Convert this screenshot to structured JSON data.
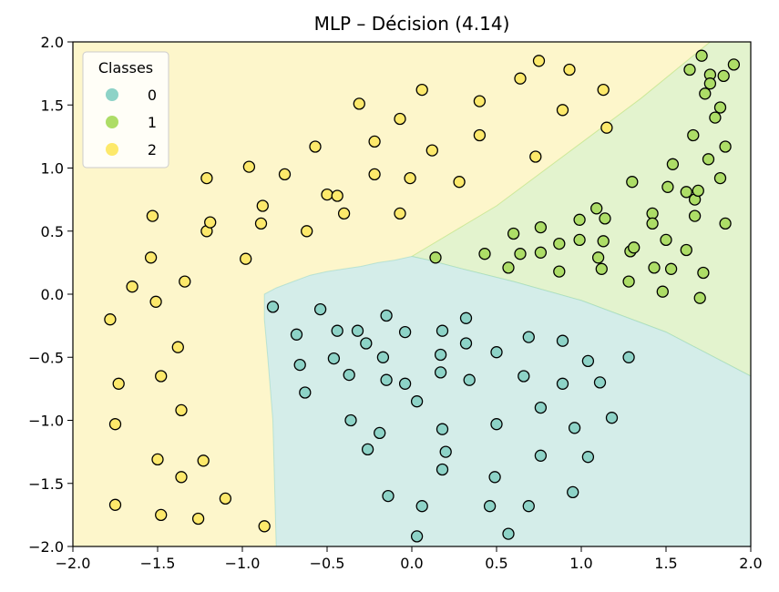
{
  "chart_data": {
    "type": "scatter",
    "title": "MLP – Décision (4.14)",
    "xlabel": "",
    "ylabel": "",
    "xlim": [
      -2.0,
      2.0
    ],
    "ylim": [
      -2.0,
      2.0
    ],
    "xticks": [
      -2.0,
      -1.5,
      -1.0,
      -0.5,
      0.0,
      0.5,
      1.0,
      1.5,
      2.0
    ],
    "yticks": [
      -2.0,
      -1.5,
      -1.0,
      -0.5,
      0.0,
      0.5,
      1.0,
      1.5,
      2.0
    ],
    "xtick_labels": [
      "−2.0",
      "−1.5",
      "−1.0",
      "−0.5",
      "0.0",
      "0.5",
      "1.0",
      "1.5",
      "2.0"
    ],
    "ytick_labels": [
      "−2.0",
      "−1.5",
      "−1.0",
      "−0.5",
      "0.0",
      "0.5",
      "1.0",
      "1.5",
      "2.0"
    ],
    "grid": false,
    "legend": {
      "title": "Classes",
      "placement": "top-left",
      "entries": [
        "0",
        "1",
        "2"
      ]
    },
    "colors": {
      "class0": "#8dd3c7",
      "class1": "#addd67",
      "class2": "#fde96b",
      "region0": "#d4ede9",
      "region1": "#e3f3ce",
      "region2": "#fdf6cb"
    },
    "regions": {
      "class0": [
        [
          -0.87,
          0.0
        ],
        [
          -0.8,
          0.05
        ],
        [
          -0.7,
          0.1
        ],
        [
          -0.6,
          0.15
        ],
        [
          -0.5,
          0.18
        ],
        [
          -0.4,
          0.2
        ],
        [
          -0.3,
          0.22
        ],
        [
          -0.2,
          0.25
        ],
        [
          -0.1,
          0.27
        ],
        [
          0.0,
          0.3
        ],
        [
          0.1,
          0.27
        ],
        [
          0.3,
          0.2
        ],
        [
          0.6,
          0.1
        ],
        [
          1.0,
          -0.05
        ],
        [
          1.5,
          -0.3
        ],
        [
          2.0,
          -0.65
        ],
        [
          2.0,
          -2.0
        ],
        [
          -0.8,
          -2.0
        ],
        [
          -0.82,
          -1.0
        ],
        [
          -0.85,
          -0.5
        ],
        [
          -0.87,
          -0.2
        ]
      ],
      "class1": [
        [
          0.0,
          0.3
        ],
        [
          0.5,
          0.7
        ],
        [
          1.0,
          1.2
        ],
        [
          1.35,
          1.55
        ],
        [
          1.76,
          2.0
        ],
        [
          2.0,
          2.0
        ],
        [
          2.0,
          -0.65
        ],
        [
          1.5,
          -0.3
        ],
        [
          1.0,
          -0.05
        ],
        [
          0.6,
          0.1
        ],
        [
          0.3,
          0.2
        ],
        [
          0.1,
          0.27
        ]
      ]
    },
    "series": [
      {
        "class": "0",
        "points": [
          [
            -0.82,
            -0.1
          ],
          [
            -0.68,
            -0.32
          ],
          [
            -0.66,
            -0.56
          ],
          [
            -0.63,
            -0.78
          ],
          [
            -0.54,
            -0.12
          ],
          [
            -0.46,
            -0.51
          ],
          [
            -0.44,
            -0.29
          ],
          [
            -0.37,
            -0.64
          ],
          [
            -0.36,
            -1.0
          ],
          [
            -0.32,
            -0.29
          ],
          [
            -0.27,
            -0.39
          ],
          [
            -0.26,
            -1.23
          ],
          [
            -0.19,
            -1.1
          ],
          [
            -0.17,
            -0.5
          ],
          [
            -0.15,
            -0.17
          ],
          [
            -0.15,
            -0.68
          ],
          [
            -0.14,
            -1.6
          ],
          [
            -0.04,
            -0.3
          ],
          [
            -0.04,
            -0.71
          ],
          [
            0.03,
            -0.85
          ],
          [
            0.03,
            -1.92
          ],
          [
            0.06,
            -1.68
          ],
          [
            0.17,
            -0.62
          ],
          [
            0.17,
            -0.48
          ],
          [
            0.18,
            -0.29
          ],
          [
            0.18,
            -1.07
          ],
          [
            0.18,
            -1.39
          ],
          [
            0.2,
            -1.25
          ],
          [
            0.32,
            -0.19
          ],
          [
            0.32,
            -0.39
          ],
          [
            0.34,
            -0.68
          ],
          [
            0.5,
            -0.46
          ],
          [
            0.5,
            -1.03
          ],
          [
            0.49,
            -1.45
          ],
          [
            0.46,
            -1.68
          ],
          [
            0.57,
            -1.9
          ],
          [
            0.66,
            -0.65
          ],
          [
            0.69,
            -0.34
          ],
          [
            0.69,
            -1.68
          ],
          [
            0.76,
            -0.9
          ],
          [
            0.76,
            -1.28
          ],
          [
            0.89,
            -0.37
          ],
          [
            0.89,
            -0.71
          ],
          [
            0.95,
            -1.57
          ],
          [
            0.96,
            -1.06
          ],
          [
            1.04,
            -0.53
          ],
          [
            1.04,
            -1.29
          ],
          [
            1.11,
            -0.7
          ],
          [
            1.18,
            -0.98
          ],
          [
            1.28,
            -0.5
          ]
        ]
      },
      {
        "class": "1",
        "points": [
          [
            0.14,
            0.29
          ],
          [
            0.43,
            0.32
          ],
          [
            0.57,
            0.21
          ],
          [
            0.6,
            0.48
          ],
          [
            0.64,
            0.32
          ],
          [
            0.76,
            0.53
          ],
          [
            0.76,
            0.33
          ],
          [
            0.87,
            0.4
          ],
          [
            0.87,
            0.18
          ],
          [
            0.99,
            0.43
          ],
          [
            0.99,
            0.59
          ],
          [
            1.09,
            0.68
          ],
          [
            1.1,
            0.29
          ],
          [
            1.12,
            0.2
          ],
          [
            1.13,
            0.42
          ],
          [
            1.14,
            0.6
          ],
          [
            1.29,
            0.34
          ],
          [
            1.31,
            0.37
          ],
          [
            1.28,
            0.1
          ],
          [
            1.3,
            0.89
          ],
          [
            1.42,
            0.64
          ],
          [
            1.42,
            0.56
          ],
          [
            1.43,
            0.21
          ],
          [
            1.48,
            0.02
          ],
          [
            1.5,
            0.43
          ],
          [
            1.51,
            0.85
          ],
          [
            1.53,
            0.2
          ],
          [
            1.54,
            1.03
          ],
          [
            1.62,
            0.81
          ],
          [
            1.62,
            0.35
          ],
          [
            1.64,
            1.78
          ],
          [
            1.66,
            1.26
          ],
          [
            1.67,
            0.75
          ],
          [
            1.67,
            0.62
          ],
          [
            1.69,
            0.82
          ],
          [
            1.7,
            -0.03
          ],
          [
            1.71,
            1.89
          ],
          [
            1.72,
            0.17
          ],
          [
            1.73,
            1.59
          ],
          [
            1.75,
            1.07
          ],
          [
            1.76,
            1.74
          ],
          [
            1.76,
            1.67
          ],
          [
            1.79,
            1.4
          ],
          [
            1.82,
            1.48
          ],
          [
            1.82,
            0.92
          ],
          [
            1.84,
            1.73
          ],
          [
            1.85,
            1.17
          ],
          [
            1.85,
            0.56
          ],
          [
            1.9,
            1.82
          ]
        ]
      },
      {
        "class": "2",
        "points": [
          [
            -1.78,
            -0.2
          ],
          [
            -1.75,
            -1.03
          ],
          [
            -1.75,
            -1.67
          ],
          [
            -1.73,
            -0.71
          ],
          [
            -1.65,
            0.06
          ],
          [
            -1.54,
            0.29
          ],
          [
            -1.53,
            0.62
          ],
          [
            -1.51,
            -0.06
          ],
          [
            -1.5,
            -1.31
          ],
          [
            -1.48,
            -0.65
          ],
          [
            -1.48,
            -1.75
          ],
          [
            -1.38,
            -0.42
          ],
          [
            -1.36,
            -0.92
          ],
          [
            -1.36,
            -1.45
          ],
          [
            -1.34,
            0.1
          ],
          [
            -1.26,
            -1.78
          ],
          [
            -1.23,
            -1.32
          ],
          [
            -1.21,
            0.92
          ],
          [
            -1.21,
            0.5
          ],
          [
            -1.19,
            0.57
          ],
          [
            -1.1,
            -1.62
          ],
          [
            -0.98,
            0.28
          ],
          [
            -0.96,
            1.01
          ],
          [
            -0.89,
            0.56
          ],
          [
            -0.88,
            0.7
          ],
          [
            -0.87,
            -1.84
          ],
          [
            -0.75,
            0.95
          ],
          [
            -0.62,
            0.5
          ],
          [
            -0.57,
            1.17
          ],
          [
            -0.5,
            0.79
          ],
          [
            -0.44,
            0.78
          ],
          [
            -0.4,
            0.64
          ],
          [
            -0.31,
            1.51
          ],
          [
            -0.22,
            0.95
          ],
          [
            -0.22,
            1.21
          ],
          [
            -0.07,
            1.39
          ],
          [
            -0.07,
            0.64
          ],
          [
            -0.01,
            0.92
          ],
          [
            0.06,
            1.62
          ],
          [
            0.12,
            1.14
          ],
          [
            0.28,
            0.89
          ],
          [
            0.4,
            1.53
          ],
          [
            0.4,
            1.26
          ],
          [
            0.64,
            1.71
          ],
          [
            0.73,
            1.09
          ],
          [
            0.75,
            1.85
          ],
          [
            0.89,
            1.46
          ],
          [
            0.93,
            1.78
          ],
          [
            1.13,
            1.62
          ],
          [
            1.15,
            1.32
          ]
        ]
      }
    ]
  }
}
